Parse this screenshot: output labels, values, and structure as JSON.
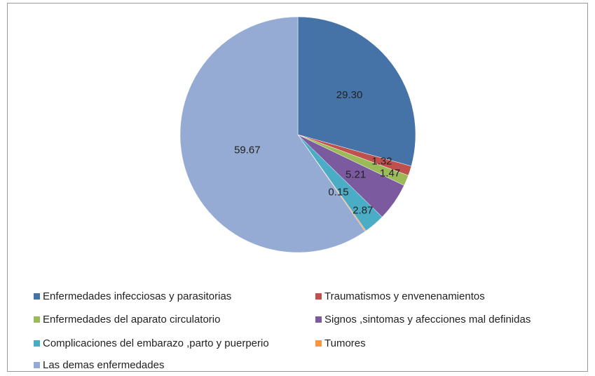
{
  "chart_data": {
    "type": "pie",
    "categories": [
      "Enfermedades infecciosas y parasitorias",
      "Traumatismos y envenenamientos",
      "Enfermedades del aparato circulatorio",
      "Signos ,sintomas y afecciones mal definidas",
      "Complicaciones del embarazo ,parto y puerperio",
      "Tumores",
      "Las demas enfermedades"
    ],
    "values": [
      29.3,
      1.32,
      1.47,
      5.21,
      2.87,
      0.15,
      59.67
    ],
    "value_labels": [
      "29.30",
      "1.32",
      "1.47",
      "5.21",
      "2.87",
      "0.15",
      "59.67"
    ],
    "colors": [
      "#4572a7",
      "#c0504d",
      "#9bbb59",
      "#7c5a9f",
      "#4bacc6",
      "#f79646",
      "#95abd3"
    ],
    "legend": "bottom"
  }
}
